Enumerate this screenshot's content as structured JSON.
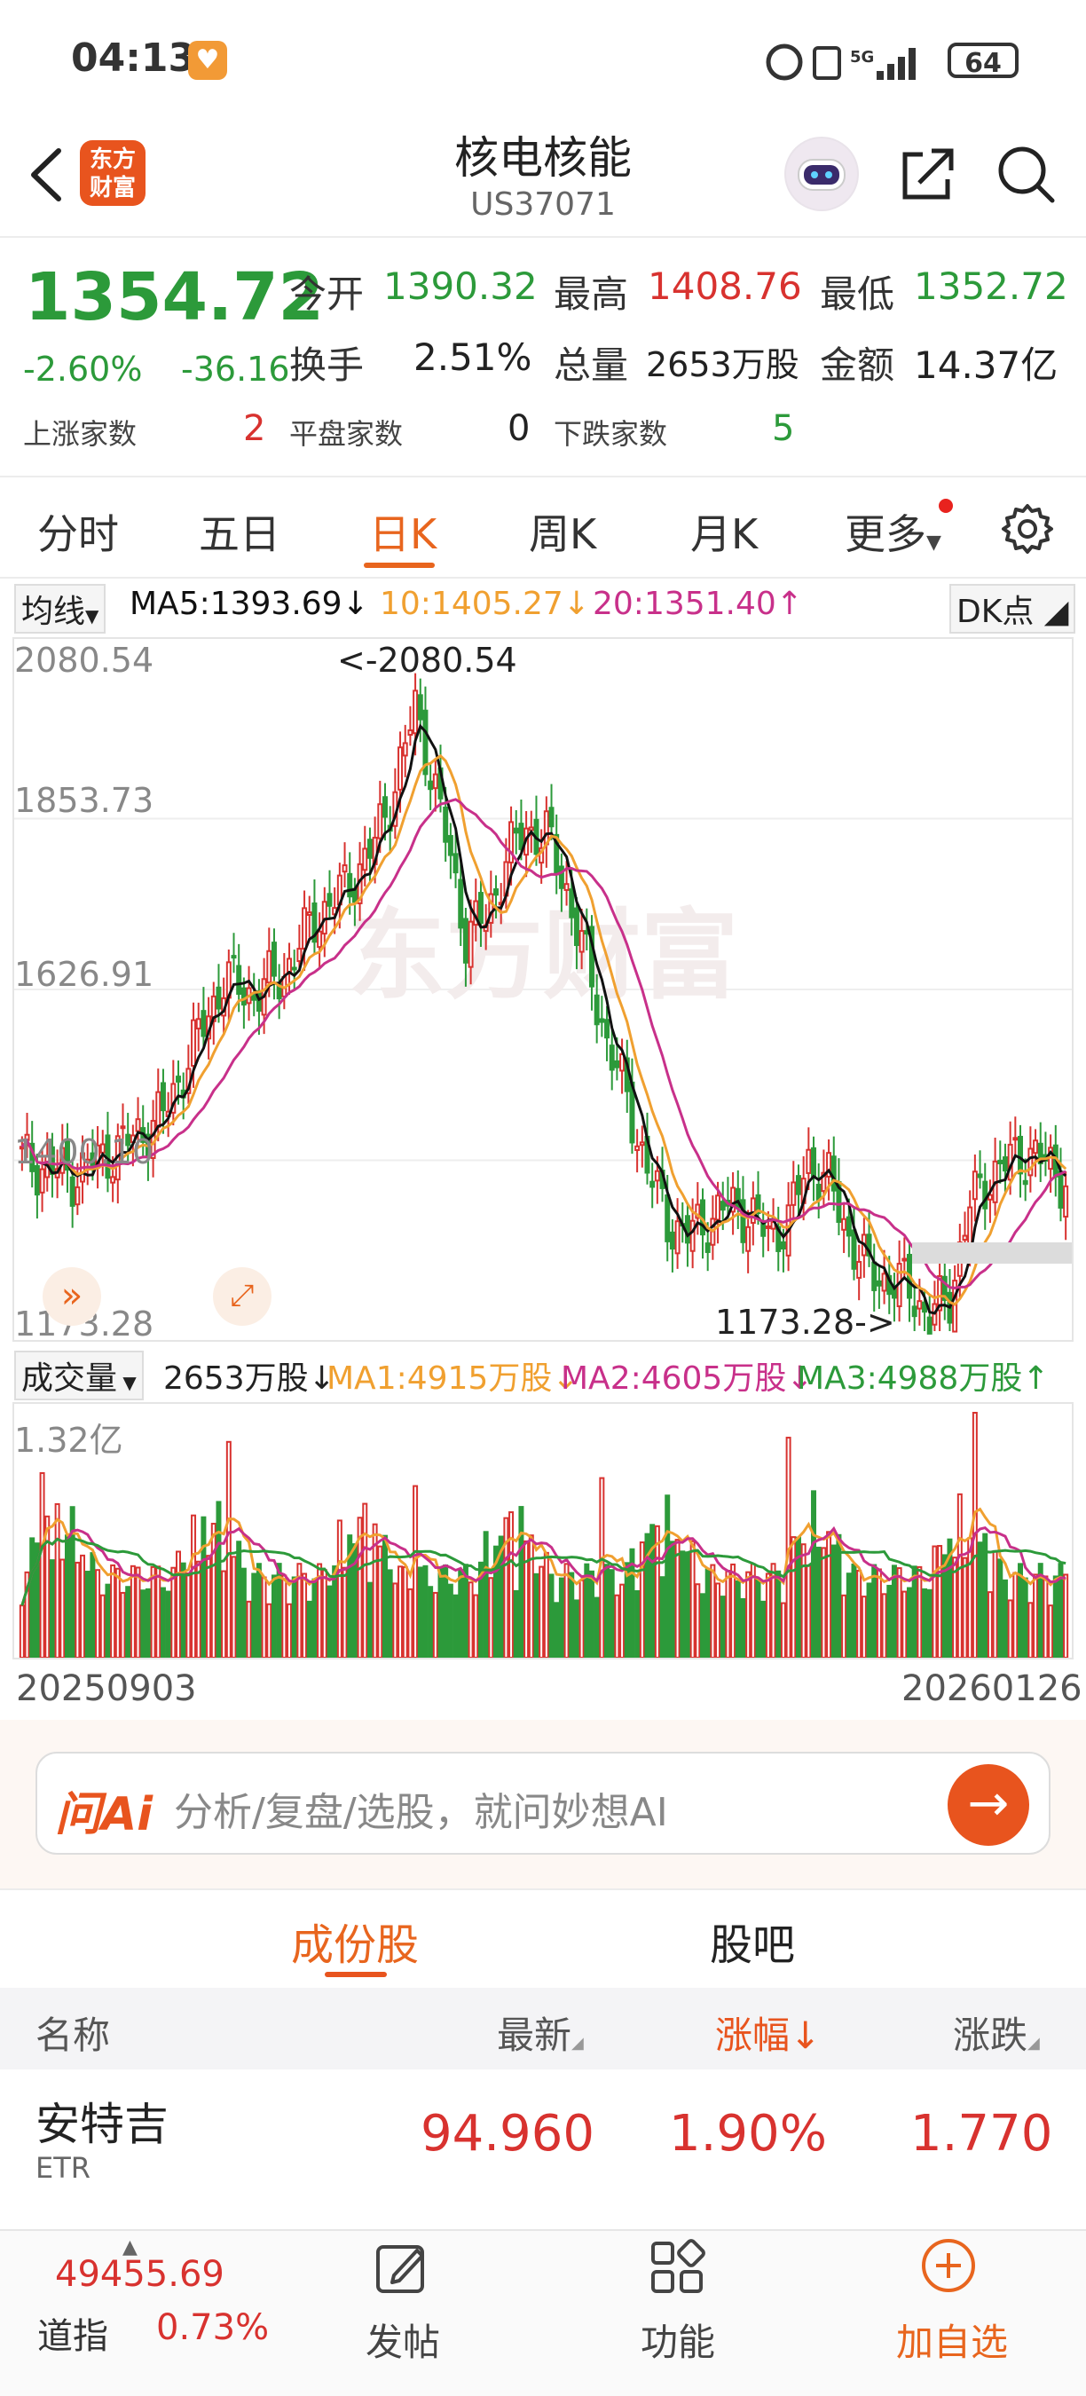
{
  "status": {
    "time": "04:13",
    "battery": "64",
    "network": "5G"
  },
  "header": {
    "logo_line1": "东方",
    "logo_line2": "财富",
    "title": "核电核能",
    "code": "US37071"
  },
  "quote": {
    "price": "1354.72",
    "change_pct": "-2.60%",
    "change": "-36.16",
    "open_label": "今开",
    "open": "1390.32",
    "high_label": "最高",
    "high": "1408.76",
    "low_label": "最低",
    "low": "1352.72",
    "turnover_label": "换手",
    "turnover": "2.51%",
    "volume_label": "总量",
    "volume": "2653万股",
    "amount_label": "金额",
    "amount": "14.37亿",
    "up_label": "上涨家数",
    "up": "2",
    "flat_label": "平盘家数",
    "flat": "0",
    "down_label": "下跌家数",
    "down": "5"
  },
  "tabs": [
    {
      "label": "分时"
    },
    {
      "label": "五日"
    },
    {
      "label": "日K"
    },
    {
      "label": "周K"
    },
    {
      "label": "月K"
    },
    {
      "label": "更多"
    }
  ],
  "ma_legend": {
    "selector": "均线",
    "ma5": "MA5:1393.69↓",
    "ma10": "10:1405.27↓",
    "ma20": "20:1351.40↑",
    "dk": "DK点"
  },
  "price_axis": [
    "2080.54",
    "1853.73",
    "1626.91",
    "1400.10",
    "1173.28"
  ],
  "annotations": {
    "high": "<-2080.54",
    "low": "1173.28->"
  },
  "vol_legend": {
    "selector": "成交量",
    "vol": "2653万股↓",
    "ma1": "MA1:4915万股↓",
    "ma2": "MA2:4605万股↓",
    "ma3": "MA3:4988万股↑"
  },
  "vol_axis": {
    "max": "1.32亿"
  },
  "date_range": {
    "start": "20250903",
    "end": "20260126"
  },
  "colors": {
    "up": "#d8322f",
    "down": "#2c9a3a",
    "accent": "#e8651e",
    "ma5": "#111111",
    "ma10": "#f0a030",
    "ma20": "#c8308a",
    "vol_ma3": "#2c9a3a"
  },
  "ai_search": {
    "logo": "问Ai",
    "placeholder": "分析/复盘/选股，就问妙想AI"
  },
  "sub_tabs": [
    {
      "label": "成份股"
    },
    {
      "label": "股吧"
    }
  ],
  "table": {
    "headers": [
      "名称",
      "最新",
      "涨幅↓",
      "涨跌"
    ],
    "rows": [
      {
        "name": "安特吉",
        "market": "ETR",
        "last": "94.960",
        "pct": "1.90%",
        "chg": "1.770"
      }
    ]
  },
  "bottom_nav": {
    "index_value": "49455.69",
    "index_name": "道指",
    "index_pct": "0.73%",
    "post": "发帖",
    "func": "功能",
    "watch": "加自选"
  }
}
